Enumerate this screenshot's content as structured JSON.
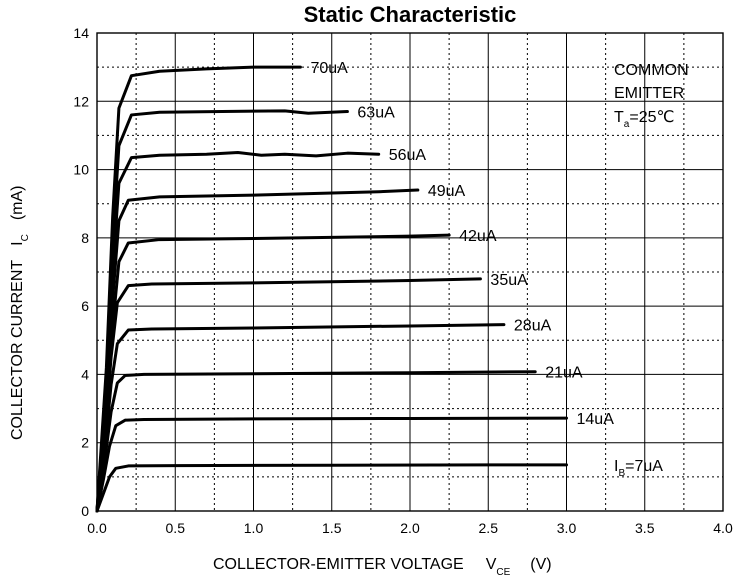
{
  "chart_data": {
    "type": "line",
    "title": "Static Characteristic",
    "xlabel": {
      "main": "COLLECTOR-EMITTER VOLTAGE",
      "symbol": "V",
      "sub": "CE",
      "unit": "(V)"
    },
    "ylabel": {
      "main": "COLLECTOR CURRENT",
      "symbol": "I",
      "sub": "C",
      "unit": "(mA)"
    },
    "xlim": [
      0.0,
      4.0
    ],
    "ylim": [
      0,
      14
    ],
    "xticks": [
      "0.0",
      "0.5",
      "1.0",
      "1.5",
      "2.0",
      "2.5",
      "3.0",
      "3.5",
      "4.0"
    ],
    "yticks": [
      "0",
      "2",
      "4",
      "6",
      "8",
      "10",
      "12",
      "14"
    ],
    "grid": {
      "major": "solid",
      "minor": "dotted"
    },
    "annotation": {
      "line1": "COMMON",
      "line2": "EMITTER",
      "temp_prefix": "T",
      "temp_sub": "a",
      "temp_value": "=25℃"
    },
    "series": [
      {
        "name": "7uA",
        "label_prefix": "I",
        "label_sub": "B",
        "label_value": "=7uA",
        "points": [
          [
            0,
            0
          ],
          [
            0.04,
            0.5
          ],
          [
            0.08,
            1.0
          ],
          [
            0.12,
            1.25
          ],
          [
            0.2,
            1.32
          ],
          [
            0.5,
            1.33
          ],
          [
            1.5,
            1.34
          ],
          [
            2.5,
            1.35
          ],
          [
            3.0,
            1.35
          ]
        ]
      },
      {
        "name": "14uA",
        "label": "14uA",
        "points": [
          [
            0,
            0
          ],
          [
            0.04,
            0.9
          ],
          [
            0.08,
            1.9
          ],
          [
            0.12,
            2.5
          ],
          [
            0.18,
            2.66
          ],
          [
            0.3,
            2.68
          ],
          [
            1.0,
            2.7
          ],
          [
            2.0,
            2.71
          ],
          [
            3.0,
            2.72
          ]
        ]
      },
      {
        "name": "21uA",
        "label": "21uA",
        "points": [
          [
            0,
            0
          ],
          [
            0.05,
            1.5
          ],
          [
            0.09,
            2.9
          ],
          [
            0.13,
            3.75
          ],
          [
            0.18,
            3.97
          ],
          [
            0.3,
            4.0
          ],
          [
            1.0,
            4.02
          ],
          [
            2.0,
            4.05
          ],
          [
            2.8,
            4.08
          ]
        ]
      },
      {
        "name": "28uA",
        "label": "28uA",
        "points": [
          [
            0,
            0
          ],
          [
            0.05,
            1.8
          ],
          [
            0.09,
            3.7
          ],
          [
            0.13,
            4.9
          ],
          [
            0.2,
            5.3
          ],
          [
            0.35,
            5.33
          ],
          [
            1.0,
            5.36
          ],
          [
            2.0,
            5.42
          ],
          [
            2.6,
            5.46
          ]
        ]
      },
      {
        "name": "35uA",
        "label": "35uA",
        "points": [
          [
            0,
            0
          ],
          [
            0.05,
            2.2
          ],
          [
            0.09,
            4.5
          ],
          [
            0.13,
            6.1
          ],
          [
            0.2,
            6.6
          ],
          [
            0.35,
            6.65
          ],
          [
            1.0,
            6.68
          ],
          [
            2.0,
            6.75
          ],
          [
            2.45,
            6.8
          ]
        ]
      },
      {
        "name": "42uA",
        "label": "42uA",
        "points": [
          [
            0,
            0
          ],
          [
            0.06,
            2.7
          ],
          [
            0.1,
            5.4
          ],
          [
            0.14,
            7.3
          ],
          [
            0.2,
            7.85
          ],
          [
            0.4,
            7.95
          ],
          [
            1.0,
            7.98
          ],
          [
            2.0,
            8.05
          ],
          [
            2.25,
            8.08
          ]
        ]
      },
      {
        "name": "49uA",
        "label": "49uA",
        "points": [
          [
            0,
            0
          ],
          [
            0.06,
            3.0
          ],
          [
            0.1,
            6.2
          ],
          [
            0.14,
            8.5
          ],
          [
            0.2,
            9.1
          ],
          [
            0.4,
            9.2
          ],
          [
            1.0,
            9.25
          ],
          [
            1.8,
            9.35
          ],
          [
            2.05,
            9.4
          ]
        ]
      },
      {
        "name": "56uA",
        "label": "56uA",
        "points": [
          [
            0,
            0
          ],
          [
            0.06,
            3.4
          ],
          [
            0.1,
            7.0
          ],
          [
            0.14,
            9.6
          ],
          [
            0.22,
            10.35
          ],
          [
            0.4,
            10.42
          ],
          [
            0.7,
            10.45
          ],
          [
            0.9,
            10.5
          ],
          [
            1.05,
            10.42
          ],
          [
            1.2,
            10.45
          ],
          [
            1.4,
            10.4
          ],
          [
            1.6,
            10.48
          ],
          [
            1.8,
            10.45
          ]
        ]
      },
      {
        "name": "63uA",
        "label": "63uA",
        "points": [
          [
            0,
            0
          ],
          [
            0.06,
            3.8
          ],
          [
            0.1,
            7.8
          ],
          [
            0.14,
            10.7
          ],
          [
            0.22,
            11.6
          ],
          [
            0.4,
            11.68
          ],
          [
            0.8,
            11.7
          ],
          [
            1.2,
            11.72
          ],
          [
            1.35,
            11.65
          ],
          [
            1.6,
            11.7
          ]
        ]
      },
      {
        "name": "70uA",
        "label": "70uA",
        "points": [
          [
            0,
            0
          ],
          [
            0.06,
            4.2
          ],
          [
            0.1,
            8.6
          ],
          [
            0.14,
            11.8
          ],
          [
            0.22,
            12.75
          ],
          [
            0.4,
            12.88
          ],
          [
            0.7,
            12.95
          ],
          [
            1.0,
            13.0
          ],
          [
            1.3,
            13.0
          ]
        ]
      }
    ]
  }
}
